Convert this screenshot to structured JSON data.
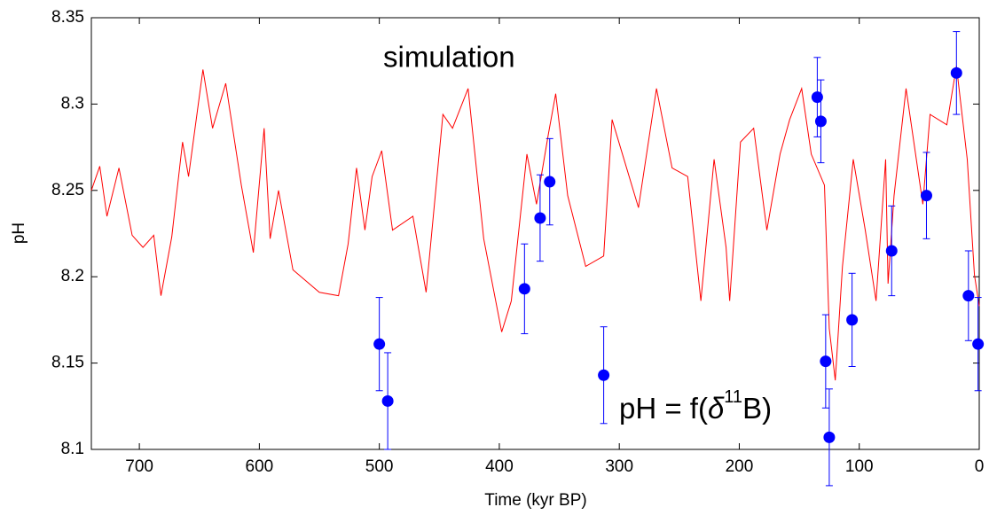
{
  "chart_data": {
    "type": "line",
    "x_label": "Time (kyr BP)",
    "y_label": "pH",
    "xlim": [
      740,
      0
    ],
    "ylim": [
      8.1,
      8.35
    ],
    "xticks": [
      700,
      600,
      500,
      400,
      300,
      200,
      100,
      0
    ],
    "yticks": [
      8.1,
      8.15,
      8.2,
      8.25,
      8.3,
      8.35
    ],
    "series": [
      {
        "name": "simulation",
        "color": "#ff0000",
        "x": [
          740,
          733,
          727,
          717,
          706,
          697,
          688,
          682,
          673,
          664,
          659,
          647,
          639,
          628,
          615,
          605,
          596,
          591,
          584,
          572,
          550,
          534,
          526,
          519,
          512,
          506,
          498,
          489,
          472,
          461,
          447,
          439,
          426,
          413,
          398,
          390,
          377,
          369,
          359,
          353,
          343,
          328,
          313,
          306,
          284,
          269,
          256,
          243,
          232,
          221,
          211,
          208,
          199,
          188,
          177,
          166,
          158,
          148,
          140,
          129,
          125,
          120,
          114,
          105,
          95,
          86,
          78,
          76,
          71,
          61,
          47,
          41,
          27,
          19,
          10,
          4,
          0
        ],
        "values": [
          8.25,
          8.264,
          8.235,
          8.263,
          8.224,
          8.217,
          8.224,
          8.189,
          8.223,
          8.278,
          8.258,
          8.32,
          8.286,
          8.312,
          8.253,
          8.214,
          8.286,
          8.222,
          8.25,
          8.204,
          8.191,
          8.189,
          8.219,
          8.263,
          8.227,
          8.258,
          8.273,
          8.227,
          8.235,
          8.191,
          8.294,
          8.286,
          8.309,
          8.222,
          8.168,
          8.186,
          8.271,
          8.242,
          8.283,
          8.306,
          8.247,
          8.206,
          8.212,
          8.291,
          8.24,
          8.309,
          8.263,
          8.258,
          8.186,
          8.268,
          8.217,
          8.186,
          8.278,
          8.286,
          8.227,
          8.271,
          8.291,
          8.309,
          8.271,
          8.253,
          8.17,
          8.14,
          8.206,
          8.268,
          8.227,
          8.186,
          8.268,
          8.196,
          8.247,
          8.309,
          8.242,
          8.294,
          8.288,
          8.322,
          8.268,
          8.201,
          8.183
        ]
      },
      {
        "name_parts": [
          "pH = f(",
          "δ",
          "11",
          "B)"
        ],
        "color": "#0000ff",
        "marker": "circle",
        "x": [
          500,
          493,
          379,
          366,
          358,
          313,
          135,
          132,
          128,
          125,
          106,
          73,
          44,
          19,
          9,
          1
        ],
        "values": [
          8.161,
          8.128,
          8.193,
          8.234,
          8.255,
          8.143,
          8.304,
          8.29,
          8.151,
          8.107,
          8.175,
          8.215,
          8.247,
          8.318,
          8.189,
          8.161
        ],
        "errors": [
          0.027,
          0.028,
          0.026,
          0.025,
          0.025,
          0.028,
          0.023,
          0.024,
          0.027,
          0.028,
          0.027,
          0.026,
          0.025,
          0.024,
          0.026,
          0.027
        ]
      }
    ]
  }
}
